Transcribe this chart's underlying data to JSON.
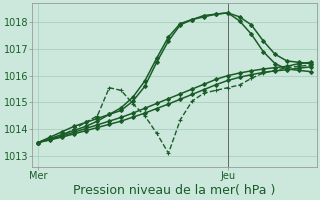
{
  "background_color": "#cce8dc",
  "grid_color": "#aacfbf",
  "line_color": "#1a5c28",
  "axis_color": "#666666",
  "title": "Pression niveau de la mer( hPa )",
  "title_fontsize": 9,
  "ytick_fontsize": 7,
  "xtick_fontsize": 7,
  "yticks": [
    1013,
    1014,
    1015,
    1016,
    1017,
    1018
  ],
  "ylim": [
    1012.6,
    1018.7
  ],
  "xtick_labels": [
    "Mer",
    "Jeu"
  ],
  "xtick_positions": [
    0,
    16
  ],
  "xlim": [
    -0.5,
    23.5
  ],
  "vline_x": 16,
  "series": [
    {
      "x": [
        0,
        1,
        2,
        3,
        4,
        5,
        6,
        7,
        8,
        9,
        10,
        11,
        12,
        13,
        14,
        15,
        16,
        17,
        18,
        19,
        20,
        21,
        22,
        23
      ],
      "y": [
        1013.5,
        1013.7,
        1013.9,
        1014.1,
        1014.25,
        1014.4,
        1014.55,
        1014.7,
        1015.05,
        1015.6,
        1016.5,
        1017.3,
        1017.9,
        1018.1,
        1018.25,
        1018.3,
        1018.35,
        1018.2,
        1017.9,
        1017.3,
        1016.8,
        1016.55,
        1016.5,
        1016.45
      ],
      "marker": "D",
      "lw": 1.1,
      "ms": 2.0,
      "dashed": false
    },
    {
      "x": [
        0,
        1,
        2,
        3,
        4,
        5,
        6,
        7,
        8,
        9,
        10,
        11,
        12,
        13,
        14,
        15,
        16,
        17,
        18,
        19,
        20,
        21,
        22,
        23
      ],
      "y": [
        1013.5,
        1013.65,
        1013.8,
        1013.95,
        1014.1,
        1014.3,
        1014.55,
        1014.8,
        1015.2,
        1015.8,
        1016.65,
        1017.45,
        1017.95,
        1018.1,
        1018.2,
        1018.3,
        1018.35,
        1018.05,
        1017.55,
        1016.9,
        1016.45,
        1016.25,
        1016.2,
        1016.15
      ],
      "marker": "D",
      "lw": 1.1,
      "ms": 2.0,
      "dashed": false
    },
    {
      "x": [
        0,
        1,
        2,
        3,
        4,
        5,
        6,
        7,
        8,
        9,
        10,
        11,
        12,
        13,
        14,
        15,
        16,
        17,
        18,
        19,
        20,
        21,
        22,
        23
      ],
      "y": [
        1013.5,
        1013.6,
        1013.75,
        1014.0,
        1014.25,
        1014.5,
        1015.55,
        1015.45,
        1014.95,
        1014.5,
        1013.85,
        1013.1,
        1014.35,
        1015.05,
        1015.35,
        1015.45,
        1015.55,
        1015.65,
        1015.9,
        1016.1,
        1016.2,
        1016.3,
        1016.35,
        1016.4
      ],
      "marker": "+",
      "lw": 1.0,
      "ms": 3.5,
      "dashed": true
    },
    {
      "x": [
        0,
        1,
        2,
        3,
        4,
        5,
        6,
        7,
        8,
        9,
        10,
        11,
        12,
        13,
        14,
        15,
        16,
        17,
        18,
        19,
        20,
        21,
        22,
        23
      ],
      "y": [
        1013.5,
        1013.62,
        1013.74,
        1013.88,
        1014.02,
        1014.16,
        1014.3,
        1014.44,
        1014.6,
        1014.78,
        1014.96,
        1015.14,
        1015.32,
        1015.5,
        1015.68,
        1015.86,
        1016.0,
        1016.1,
        1016.18,
        1016.25,
        1016.3,
        1016.35,
        1016.45,
        1016.5
      ],
      "marker": "D",
      "lw": 1.1,
      "ms": 2.0,
      "dashed": false
    },
    {
      "x": [
        0,
        1,
        2,
        3,
        4,
        5,
        6,
        7,
        8,
        9,
        10,
        11,
        12,
        13,
        14,
        15,
        16,
        17,
        18,
        19,
        20,
        21,
        22,
        23
      ],
      "y": [
        1013.5,
        1013.6,
        1013.7,
        1013.82,
        1013.94,
        1014.06,
        1014.18,
        1014.3,
        1014.45,
        1014.6,
        1014.77,
        1014.94,
        1015.12,
        1015.3,
        1015.48,
        1015.66,
        1015.82,
        1015.94,
        1016.04,
        1016.12,
        1016.18,
        1016.22,
        1016.28,
        1016.33
      ],
      "marker": "D",
      "lw": 1.1,
      "ms": 2.0,
      "dashed": false
    }
  ]
}
